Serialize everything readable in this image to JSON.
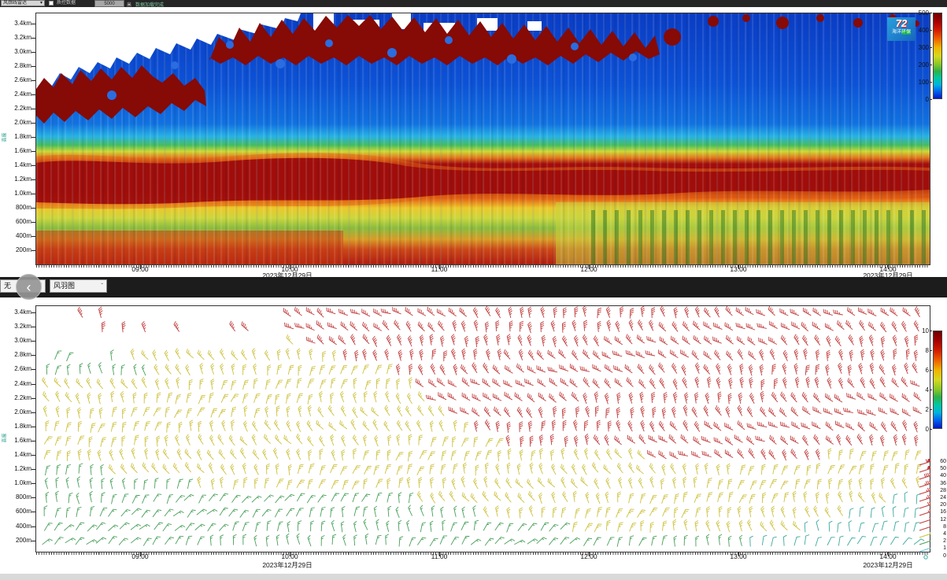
{
  "toolbar": {
    "device_select": "风廓线雷达",
    "checkbox_label": "质控数据",
    "height_button": "5000",
    "unit_label": "米",
    "status_text": "数据加载完成",
    "dropdown_arrow": "▾"
  },
  "divider": {
    "overlay_select": "无",
    "chart_type_select": "风羽图",
    "back_label": "‹",
    "dropdown_arrow": "ˇ"
  },
  "logo": {
    "mark": "72",
    "caption_plain": "海洋",
    "caption_highlight": "环保"
  },
  "top_chart": {
    "y_axis_title": "高度",
    "y_ticks": [
      "3.4km",
      "3.2km",
      "3.0km",
      "2.8km",
      "2.6km",
      "2.4km",
      "2.2km",
      "2.0km",
      "1.8km",
      "1.6km",
      "1.4km",
      "1.2km",
      "1.0km",
      "800m",
      "600m",
      "400m",
      "200m"
    ],
    "x_ticks": [
      "09:00",
      "10:00",
      "11:00",
      "12:00",
      "13:00",
      "14:00"
    ],
    "date_left": "2023年12月29日",
    "date_right": "2023年12月29日",
    "colorbar_ticks": [
      "500",
      "400",
      "300",
      "200",
      "100",
      "0"
    ]
  },
  "bottom_chart": {
    "y_axis_title": "高度",
    "y_ticks": [
      "3.4km",
      "3.2km",
      "3.0km",
      "2.8km",
      "2.6km",
      "2.4km",
      "2.2km",
      "2.0km",
      "1.8km",
      "1.6km",
      "1.4km",
      "1.2km",
      "1.0km",
      "800m",
      "600m",
      "400m",
      "200m"
    ],
    "x_ticks": [
      "09:00",
      "10:00",
      "11:00",
      "12:00",
      "13:00",
      "14:00"
    ],
    "date_left": "2023年12月29日",
    "date_right": "2023年12月29日",
    "colorbar_ticks": [
      "10",
      "8",
      "6",
      "4",
      "2",
      "0"
    ]
  },
  "chart_data": [
    {
      "type": "heatmap",
      "title": "",
      "x_ticks": [
        "09:00",
        "10:00",
        "11:00",
        "12:00",
        "13:00",
        "14:00"
      ],
      "x_dates": [
        "2023年12月29日",
        "2023年12月29日"
      ],
      "y_ticks": [
        "3.4km",
        "3.2km",
        "3.0km",
        "2.8km",
        "2.6km",
        "2.4km",
        "2.2km",
        "2.0km",
        "1.8km",
        "1.6km",
        "1.4km",
        "1.2km",
        "1.0km",
        "800m",
        "600m",
        "400m",
        "200m"
      ],
      "colorbar": {
        "min": 0,
        "max": 500,
        "ticks": [
          500,
          400,
          300,
          200,
          100,
          0
        ]
      },
      "regions": [
        {
          "alt": "2.4km-3.4km left half",
          "value_desc": "no data (white) with dark-red ground clutter blobs (~500)"
        },
        {
          "alt": "2.6km-3.4km mid",
          "value_desc": "dark-red clutter band (~500) along data top edge"
        },
        {
          "alt": "1.6km-3.4km",
          "value_desc": "low values ~0-100 (blue) with vertical streaks"
        },
        {
          "alt": "1.4km-1.6km",
          "value_desc": "transition cyan-green ~150-250"
        },
        {
          "alt": "1.0km-1.4km",
          "value_desc": "strong layer ~450-500 (dark red), wavy, full width"
        },
        {
          "alt": "400m-1.0km",
          "value_desc": "mixed ~200-350 (yellow/green/orange), green streaks right"
        },
        {
          "alt": "200m-400m",
          "value_desc": "high ~350-500 (orange/red) left, yellow-green right"
        }
      ]
    },
    {
      "type": "scatter",
      "glyph": "wind-barb",
      "title": "",
      "x_ticks": [
        "09:00",
        "10:00",
        "11:00",
        "12:00",
        "13:00",
        "14:00"
      ],
      "x_dates": [
        "2023年12月29日",
        "2023年12月29日"
      ],
      "y_ticks": [
        "3.4km",
        "3.2km",
        "3.0km",
        "2.8km",
        "2.6km",
        "2.4km",
        "2.2km",
        "2.0km",
        "1.8km",
        "1.6km",
        "1.4km",
        "1.2km",
        "1.0km",
        "800m",
        "600m",
        "400m",
        "200m"
      ],
      "colorbar": {
        "min": 0,
        "max": 10,
        "ticks": [
          10,
          8,
          6,
          4,
          2,
          0
        ]
      },
      "speed_colors": {
        "red": "#c23a3a",
        "yellow": "#cdc13c",
        "green": "#46a058",
        "teal": "#3aaa9c",
        "cyan": "#62c6e2"
      },
      "legend": [
        {
          "value": "60",
          "color": "red"
        },
        {
          "value": "50",
          "color": "red"
        },
        {
          "value": "40",
          "color": "red"
        },
        {
          "value": "36",
          "color": "red"
        },
        {
          "value": "28",
          "color": "red"
        },
        {
          "value": "24",
          "color": "red"
        },
        {
          "value": "20",
          "color": "red"
        },
        {
          "value": "16",
          "color": "red"
        },
        {
          "value": "12",
          "color": "red"
        },
        {
          "value": "8",
          "color": "red"
        },
        {
          "value": "4",
          "color": "yellow"
        },
        {
          "value": "2",
          "color": "green"
        },
        {
          "value": "1",
          "color": "cyan"
        },
        {
          "value": "0",
          "color": "teal"
        }
      ],
      "rows": [
        {
          "alt": "3.4km",
          "segs": [
            [
              0.04,
              0.09,
              "red",
              "sparse"
            ],
            [
              0.27,
              1,
              "red"
            ]
          ]
        },
        {
          "alt": "3.2km",
          "segs": [
            [
              0.06,
              0.27,
              "red",
              "sparse"
            ],
            [
              0.27,
              1,
              "red"
            ]
          ]
        },
        {
          "alt": "3.0km",
          "segs": [
            [
              0.02,
              0.12,
              "red",
              "sparse"
            ],
            [
              0.16,
              0.3,
              "yellow",
              "sparse"
            ],
            [
              0.3,
              1,
              "red"
            ]
          ]
        },
        {
          "alt": "2.8km",
          "segs": [
            [
              0,
              0.1,
              "green",
              "sparse"
            ],
            [
              0.1,
              0.34,
              "yellow"
            ],
            [
              0.34,
              1,
              "red"
            ]
          ]
        },
        {
          "alt": "2.6km",
          "segs": [
            [
              0,
              0.13,
              "green"
            ],
            [
              0.13,
              0.4,
              "yellow"
            ],
            [
              0.4,
              1,
              "red"
            ]
          ]
        },
        {
          "alt": "2.4km",
          "segs": [
            [
              0,
              0.42,
              "yellow"
            ],
            [
              0.42,
              1,
              "red"
            ]
          ]
        },
        {
          "alt": "2.2km",
          "segs": [
            [
              0,
              0.44,
              "yellow"
            ],
            [
              0.44,
              1,
              "red"
            ]
          ]
        },
        {
          "alt": "2.0km",
          "segs": [
            [
              0,
              0.46,
              "yellow"
            ],
            [
              0.46,
              1,
              "red"
            ]
          ]
        },
        {
          "alt": "1.8km",
          "segs": [
            [
              0,
              0.48,
              "yellow"
            ],
            [
              0.48,
              1,
              "red"
            ]
          ]
        },
        {
          "alt": "1.6km",
          "segs": [
            [
              0,
              0.52,
              "yellow"
            ],
            [
              0.52,
              1,
              "red"
            ]
          ]
        },
        {
          "alt": "1.4km",
          "segs": [
            [
              0,
              0.68,
              "yellow"
            ],
            [
              0.68,
              0.88,
              "red"
            ],
            [
              0.88,
              1,
              "yellow"
            ]
          ]
        },
        {
          "alt": "1.2km",
          "segs": [
            [
              0,
              0.08,
              "green"
            ],
            [
              0.08,
              1,
              "yellow"
            ]
          ]
        },
        {
          "alt": "1.0km",
          "segs": [
            [
              0,
              0.18,
              "green"
            ],
            [
              0.18,
              1,
              "yellow"
            ]
          ]
        },
        {
          "alt": "800m",
          "segs": [
            [
              0,
              0.42,
              "green"
            ],
            [
              0.42,
              0.95,
              "yellow"
            ],
            [
              0.95,
              1,
              "teal"
            ]
          ]
        },
        {
          "alt": "600m",
          "segs": [
            [
              0,
              0.5,
              "green"
            ],
            [
              0.5,
              0.9,
              "yellow"
            ],
            [
              0.9,
              1,
              "teal"
            ]
          ]
        },
        {
          "alt": "400m",
          "segs": [
            [
              0,
              0.6,
              "green"
            ],
            [
              0.6,
              0.85,
              "yellow"
            ],
            [
              0.85,
              1,
              "teal"
            ]
          ]
        },
        {
          "alt": "200m",
          "segs": [
            [
              0,
              0.8,
              "green"
            ],
            [
              0.8,
              1,
              "teal"
            ]
          ]
        }
      ]
    }
  ]
}
